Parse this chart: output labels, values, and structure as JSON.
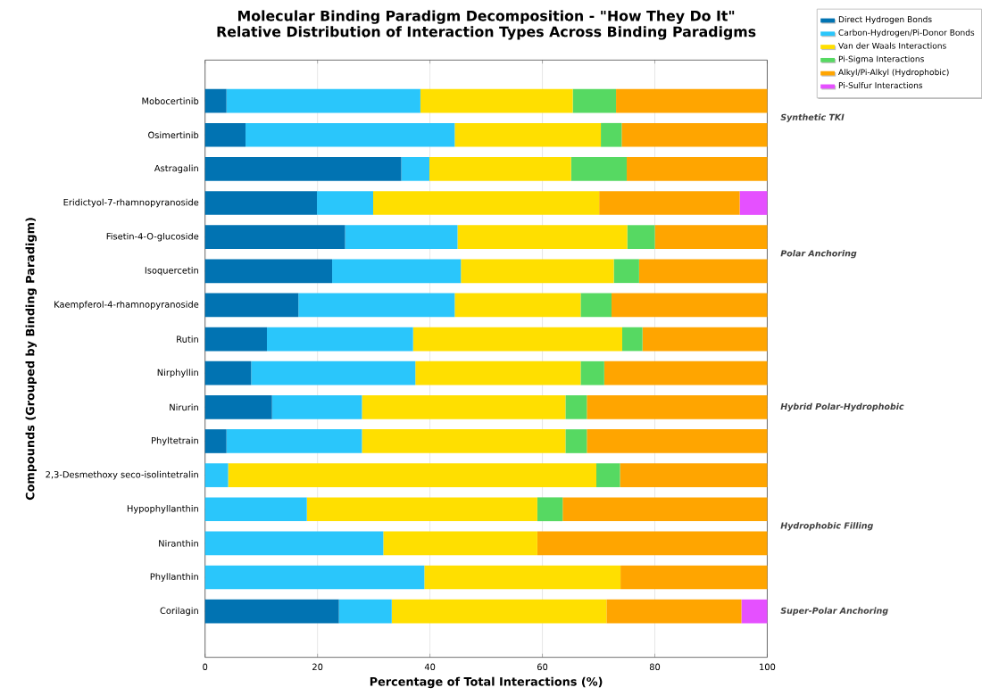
{
  "chart_data": {
    "type": "bar",
    "orientation": "horizontal",
    "stacked": true,
    "title": "Molecular Binding Paradigm Decomposition - \"How They Do It\"",
    "subtitle": "Relative Distribution of Interaction Types Across Binding Paradigms",
    "xlabel": "Percentage of Total Interactions (%)",
    "ylabel": "Compounds (Grouped by Binding Paradigm)",
    "categories": [
      "Mobocertinib",
      "Osimertinib",
      "Astragalin",
      "Eridictyol-7-rhamnopyranoside",
      "Fisetin-4-O-glucoside",
      "Isoquercetin",
      "Kaempferol-4-rhamnopyranoside",
      "Rutin",
      "Nirphyllin",
      "Nirurin",
      "Phyltetrain",
      "2,3-Desmethoxy seco-isolintetralin",
      "Hypophyllanthin",
      "Niranthin",
      "Phyllanthin",
      "Corilagin"
    ],
    "series": [
      {
        "name": "Direct Hydrogen Bonds",
        "color": "#0173b2",
        "values": [
          3.8,
          7.2,
          34.9,
          19.9,
          24.9,
          22.6,
          16.6,
          11.0,
          8.2,
          11.9,
          3.8,
          0,
          0,
          0,
          0,
          23.8
        ]
      },
      {
        "name": "Carbon-Hydrogen/Pi-Donor Bonds",
        "color": "#2ac6fb",
        "values": [
          34.5,
          37.2,
          5.0,
          10.0,
          20.0,
          22.9,
          27.8,
          26.0,
          29.2,
          16.0,
          24.1,
          4.1,
          18.1,
          31.7,
          39.0,
          9.4
        ]
      },
      {
        "name": "Van der Waals Interactions",
        "color": "#ffdf00",
        "values": [
          27.1,
          26.0,
          25.2,
          40.2,
          30.2,
          27.2,
          22.4,
          37.2,
          29.4,
          36.2,
          36.2,
          65.5,
          41.0,
          27.4,
          34.9,
          38.2
        ]
      },
      {
        "name": "Pi-Sigma Interactions",
        "color": "#56d962",
        "values": [
          7.7,
          3.7,
          9.9,
          0,
          4.9,
          4.5,
          5.5,
          3.6,
          4.2,
          3.8,
          3.8,
          4.2,
          4.5,
          0,
          0,
          0
        ]
      },
      {
        "name": "Alkyl/Pi-Alkyl (Hydrophobic)",
        "color": "#ffa500",
        "values": [
          26.9,
          25.9,
          25.0,
          25.0,
          20.0,
          22.8,
          27.7,
          22.2,
          29.0,
          32.1,
          32.1,
          26.2,
          36.4,
          40.9,
          26.1,
          24.0
        ]
      },
      {
        "name": "Pi-Sulfur Interactions",
        "color": "#e550ff",
        "values": [
          0,
          0,
          0,
          4.9,
          0,
          0,
          0,
          0,
          0,
          0,
          0,
          0,
          0,
          0,
          0,
          4.6
        ]
      }
    ],
    "xlim": [
      0,
      100
    ],
    "xticks": [
      0,
      20,
      40,
      60,
      80,
      100
    ],
    "grid": "x",
    "legend": "top right",
    "annotations": [
      "Synthetic TKI",
      "Polar Anchoring",
      "Hybrid Polar-Hydrophobic",
      "Hydrophobic Filling",
      "Super-Polar Anchoring"
    ]
  }
}
